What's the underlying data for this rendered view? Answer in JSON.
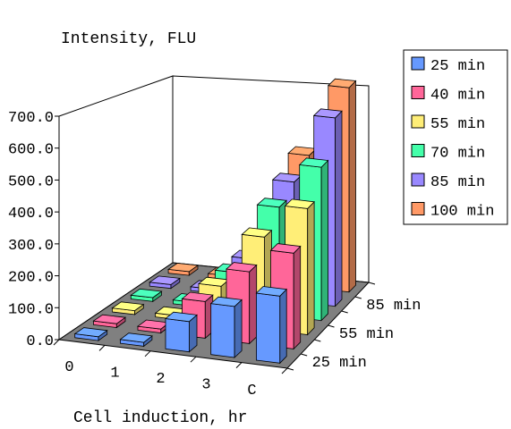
{
  "chart_data": {
    "type": "bar",
    "title": "Intensity, FLU",
    "xlabel": "Cell induction, hr",
    "ylabel": "",
    "categories": [
      "0",
      "1",
      "2",
      "3",
      "C"
    ],
    "depth_tick_labels": [
      "25 min",
      "55 min",
      "85 min"
    ],
    "yticks": [
      "0.0",
      "100.0",
      "200.0",
      "300.0",
      "400.0",
      "500.0",
      "600.0",
      "700.0"
    ],
    "ylim": [
      0,
      700
    ],
    "grid": false,
    "legend_position": "top-right",
    "series": [
      {
        "name": "25 min",
        "color": "#6699FF",
        "values": [
          12,
          12,
          95,
          160,
          210
        ]
      },
      {
        "name": "40 min",
        "color": "#FF6699",
        "values": [
          12,
          12,
          115,
          225,
          300
        ]
      },
      {
        "name": "55 min",
        "color": "#FFEE77",
        "values": [
          12,
          12,
          120,
          290,
          395
        ]
      },
      {
        "name": "70 min",
        "color": "#44FFAA",
        "values": [
          12,
          12,
          120,
          340,
          480
        ]
      },
      {
        "name": "85 min",
        "color": "#9988FF",
        "values": [
          12,
          12,
          120,
          375,
          590
        ]
      },
      {
        "name": "100 min",
        "color": "#FF9966",
        "values": [
          12,
          12,
          100,
          415,
          640
        ]
      }
    ]
  }
}
